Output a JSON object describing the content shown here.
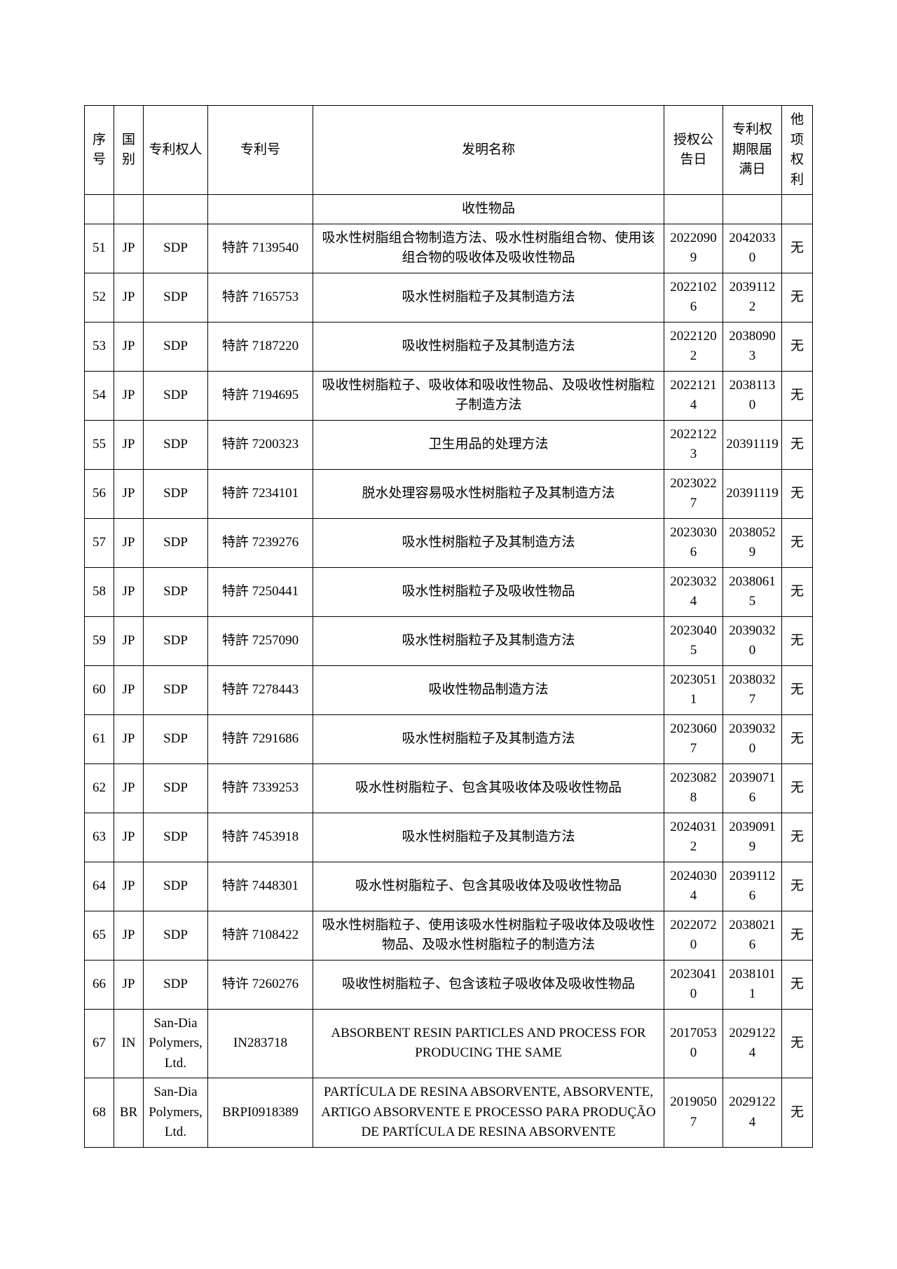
{
  "columns": [
    {
      "key": "seq",
      "label": "序号"
    },
    {
      "key": "country",
      "label": "国别"
    },
    {
      "key": "owner",
      "label": "专利权人"
    },
    {
      "key": "patentno",
      "label": "专利号"
    },
    {
      "key": "title",
      "label": "发明名称"
    },
    {
      "key": "grant",
      "label": "授权公告日"
    },
    {
      "key": "expiry",
      "label": "专利权期限届满日"
    },
    {
      "key": "other",
      "label": "他项权利"
    }
  ],
  "firstRowTitle": "收性物品",
  "rows": [
    {
      "seq": "51",
      "country": "JP",
      "owner": "SDP",
      "patentno": "特許 7139540",
      "title": "吸水性树脂组合物制造方法、吸水性树脂组合物、使用该组合物的吸收体及吸收性物品",
      "grant": "20220909",
      "expiry": "20420330",
      "other": "无"
    },
    {
      "seq": "52",
      "country": "JP",
      "owner": "SDP",
      "patentno": "特許 7165753",
      "title": "吸水性树脂粒子及其制造方法",
      "grant": "20221026",
      "expiry": "20391122",
      "other": "无"
    },
    {
      "seq": "53",
      "country": "JP",
      "owner": "SDP",
      "patentno": "特許 7187220",
      "title": "吸收性树脂粒子及其制造方法",
      "grant": "20221202",
      "expiry": "20380903",
      "other": "无"
    },
    {
      "seq": "54",
      "country": "JP",
      "owner": "SDP",
      "patentno": "特許 7194695",
      "title": "吸收性树脂粒子、吸收体和吸收性物品、及吸收性树脂粒子制造方法",
      "grant": "20221214",
      "expiry": "20381130",
      "other": "无"
    },
    {
      "seq": "55",
      "country": "JP",
      "owner": "SDP",
      "patentno": "特許 7200323",
      "title": "卫生用品的处理方法",
      "grant": "20221223",
      "expiry": "20391119",
      "other": "无"
    },
    {
      "seq": "56",
      "country": "JP",
      "owner": "SDP",
      "patentno": "特許 7234101",
      "title": "脱水处理容易吸水性树脂粒子及其制造方法",
      "grant": "20230227",
      "expiry": "20391119",
      "other": "无"
    },
    {
      "seq": "57",
      "country": "JP",
      "owner": "SDP",
      "patentno": "特許 7239276",
      "title": "吸水性树脂粒子及其制造方法",
      "grant": "20230306",
      "expiry": "20380529",
      "other": "无"
    },
    {
      "seq": "58",
      "country": "JP",
      "owner": "SDP",
      "patentno": "特許 7250441",
      "title": "吸水性树脂粒子及吸收性物品",
      "grant": "20230324",
      "expiry": "20380615",
      "other": "无"
    },
    {
      "seq": "59",
      "country": "JP",
      "owner": "SDP",
      "patentno": "特許 7257090",
      "title": "吸水性树脂粒子及其制造方法",
      "grant": "20230405",
      "expiry": "20390320",
      "other": "无"
    },
    {
      "seq": "60",
      "country": "JP",
      "owner": "SDP",
      "patentno": "特許 7278443",
      "title": "吸收性物品制造方法",
      "grant": "20230511",
      "expiry": "20380327",
      "other": "无"
    },
    {
      "seq": "61",
      "country": "JP",
      "owner": "SDP",
      "patentno": "特許 7291686",
      "title": "吸水性树脂粒子及其制造方法",
      "grant": "20230607",
      "expiry": "20390320",
      "other": "无"
    },
    {
      "seq": "62",
      "country": "JP",
      "owner": "SDP",
      "patentno": "特許 7339253",
      "title": "吸水性树脂粒子、包含其吸收体及吸收性物品",
      "grant": "20230828",
      "expiry": "20390716",
      "other": "无"
    },
    {
      "seq": "63",
      "country": "JP",
      "owner": "SDP",
      "patentno": "特許 7453918",
      "title": "吸水性树脂粒子及其制造方法",
      "grant": "20240312",
      "expiry": "20390919",
      "other": "无"
    },
    {
      "seq": "64",
      "country": "JP",
      "owner": "SDP",
      "patentno": "特許 7448301",
      "title": "吸水性树脂粒子、包含其吸收体及吸收性物品",
      "grant": "20240304",
      "expiry": "20391126",
      "other": "无"
    },
    {
      "seq": "65",
      "country": "JP",
      "owner": "SDP",
      "patentno": "特許 7108422",
      "title": "吸水性树脂粒子、使用该吸水性树脂粒子吸收体及吸收性物品、及吸水性树脂粒子的制造方法",
      "grant": "20220720",
      "expiry": "20380216",
      "other": "无"
    },
    {
      "seq": "66",
      "country": "JP",
      "owner": "SDP",
      "patentno": "特许 7260276",
      "title": "吸收性树脂粒子、包含该粒子吸收体及吸收性物品",
      "grant": "20230410",
      "expiry": "20381011",
      "other": "无"
    },
    {
      "seq": "67",
      "country": "IN",
      "owner": "San-Dia Polymers, Ltd.",
      "patentno": "IN283718",
      "title": "ABSORBENT RESIN PARTICLES AND PROCESS FOR PRODUCING THE SAME",
      "grant": "20170530",
      "expiry": "20291224",
      "other": "无"
    },
    {
      "seq": "68",
      "country": "BR",
      "owner": "San-Dia Polymers, Ltd.",
      "patentno": "BRPI0918389",
      "title": "PARTÍCULA DE RESINA ABSORVENTE, ABSORVENTE, ARTIGO ABSORVENTE E PROCESSO PARA PRODUÇÃO DE PARTÍCULA DE RESINA ABSORVENTE",
      "grant": "20190507",
      "expiry": "20291224",
      "other": "无"
    }
  ]
}
